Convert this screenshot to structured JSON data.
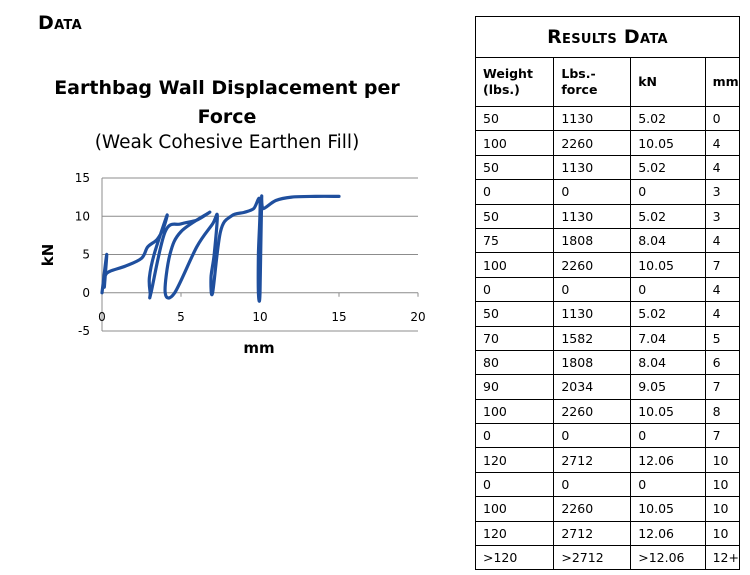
{
  "page": {
    "heading": "Data"
  },
  "chart_data": {
    "type": "line",
    "title": "Earthbag Wall Displacement per Force",
    "subtitle": "(Weak Cohesive Earthen Fill)",
    "xlabel": "mm",
    "ylabel": "kN",
    "xlim": [
      0,
      20
    ],
    "ylim": [
      -5,
      15
    ],
    "x_ticks": [
      0,
      5,
      10,
      15,
      20
    ],
    "y_ticks": [
      -5,
      0,
      5,
      10,
      15
    ],
    "grid": "horizontal",
    "legend": "none",
    "series_color": "#1f4f9e",
    "series": [
      {
        "x": [
          0,
          0.3,
          0.15,
          0.2,
          0.5,
          1.5,
          2.5,
          2.9,
          3.5,
          3.9,
          4.1,
          3.3,
          3.0,
          3.05,
          3.1,
          4.0,
          5.0,
          6.0,
          6.8,
          5.0,
          4.3,
          4.0,
          4.6,
          6.0,
          7.0,
          7.3,
          7.1,
          6.9,
          7.0,
          7.5,
          8.2,
          9.0,
          9.6,
          10.0,
          9.9,
          9.9,
          10.0,
          10.1,
          10.2,
          11.0,
          12.0,
          13.5,
          15.0
        ],
        "y": [
          0,
          5.0,
          0.8,
          2.2,
          2.8,
          3.5,
          4.5,
          6.0,
          7.0,
          8.5,
          10.05,
          5.0,
          2.0,
          0,
          0,
          8.0,
          9.0,
          9.5,
          10.5,
          8.0,
          5.0,
          0,
          0,
          6.0,
          9.0,
          10.05,
          5.0,
          2.0,
          0,
          8.0,
          10.05,
          10.5,
          11.0,
          12.06,
          5.0,
          0,
          0,
          12.06,
          11.0,
          12.06,
          12.5,
          12.6,
          12.6
        ]
      }
    ]
  },
  "table": {
    "title": "Results Data",
    "columns": [
      "Weight (lbs.)",
      "Lbs.-force",
      "kN",
      "mm"
    ],
    "rows": [
      [
        "50",
        "1130",
        "5.02",
        "0"
      ],
      [
        "100",
        "2260",
        "10.05",
        "4"
      ],
      [
        "50",
        "1130",
        "5.02",
        "4"
      ],
      [
        "0",
        "0",
        "0",
        "3"
      ],
      [
        "50",
        "1130",
        "5.02",
        "3"
      ],
      [
        "75",
        "1808",
        "8.04",
        "4"
      ],
      [
        "100",
        "2260",
        "10.05",
        "7"
      ],
      [
        "0",
        "0",
        "0",
        "4"
      ],
      [
        "50",
        "1130",
        "5.02",
        "4"
      ],
      [
        "70",
        "1582",
        "7.04",
        "5"
      ],
      [
        "80",
        "1808",
        "8.04",
        "6"
      ],
      [
        "90",
        "2034",
        "9.05",
        "7"
      ],
      [
        "100",
        "2260",
        "10.05",
        "8"
      ],
      [
        "0",
        "0",
        "0",
        "7"
      ],
      [
        "120",
        "2712",
        "12.06",
        "10"
      ],
      [
        "0",
        "0",
        "0",
        "10"
      ],
      [
        "100",
        "2260",
        "10.05",
        "10"
      ],
      [
        "120",
        "2712",
        "12.06",
        "10"
      ],
      [
        ">120",
        ">2712",
        ">12.06",
        "12+"
      ]
    ]
  }
}
